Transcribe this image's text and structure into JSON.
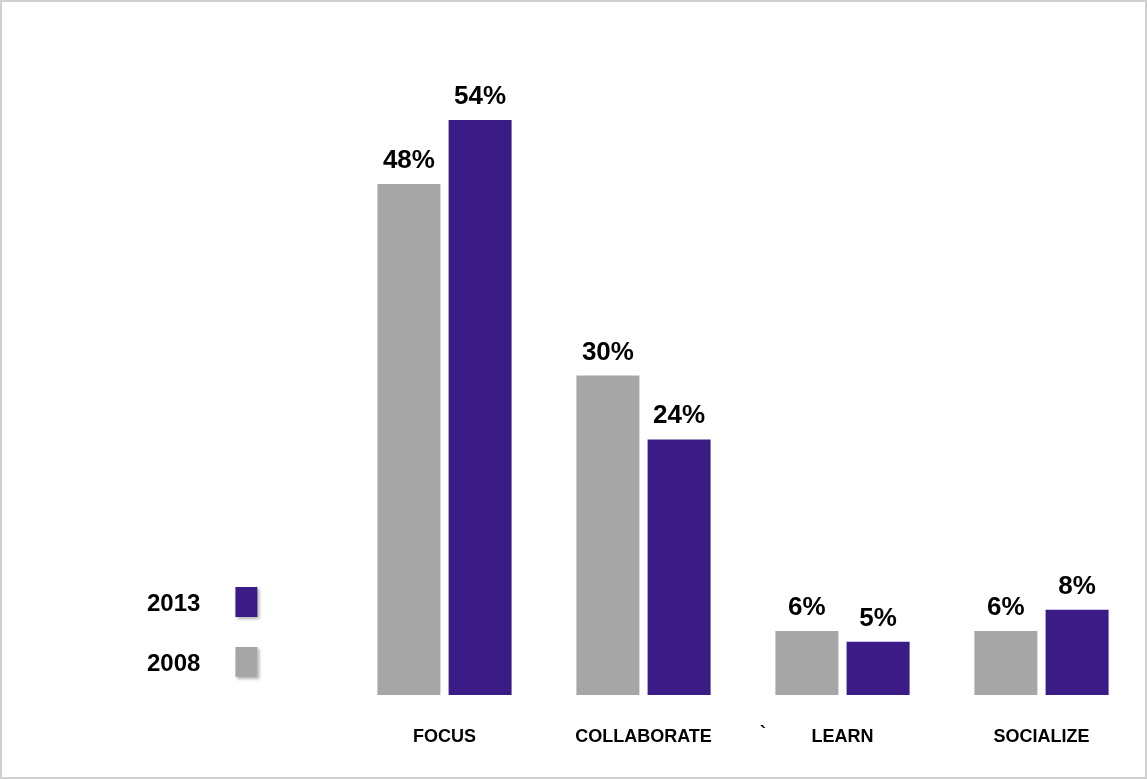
{
  "chart_data": {
    "type": "bar",
    "categories": [
      "FOCUS",
      "COLLABORATE",
      "LEARN",
      "SOCIALIZE"
    ],
    "series": [
      {
        "name": "2008",
        "color": "#a6a6a6",
        "values": [
          48,
          30,
          6,
          6
        ],
        "value_labels": [
          "48%",
          "30%",
          "6%",
          "6%"
        ]
      },
      {
        "name": "2013",
        "color": "#3b1c86",
        "values": [
          54,
          24,
          5,
          8
        ],
        "value_labels": [
          "54%",
          "24%",
          "5%",
          "8%"
        ]
      }
    ],
    "annotations": [
      "`"
    ],
    "legend": "left",
    "grid": false
  }
}
